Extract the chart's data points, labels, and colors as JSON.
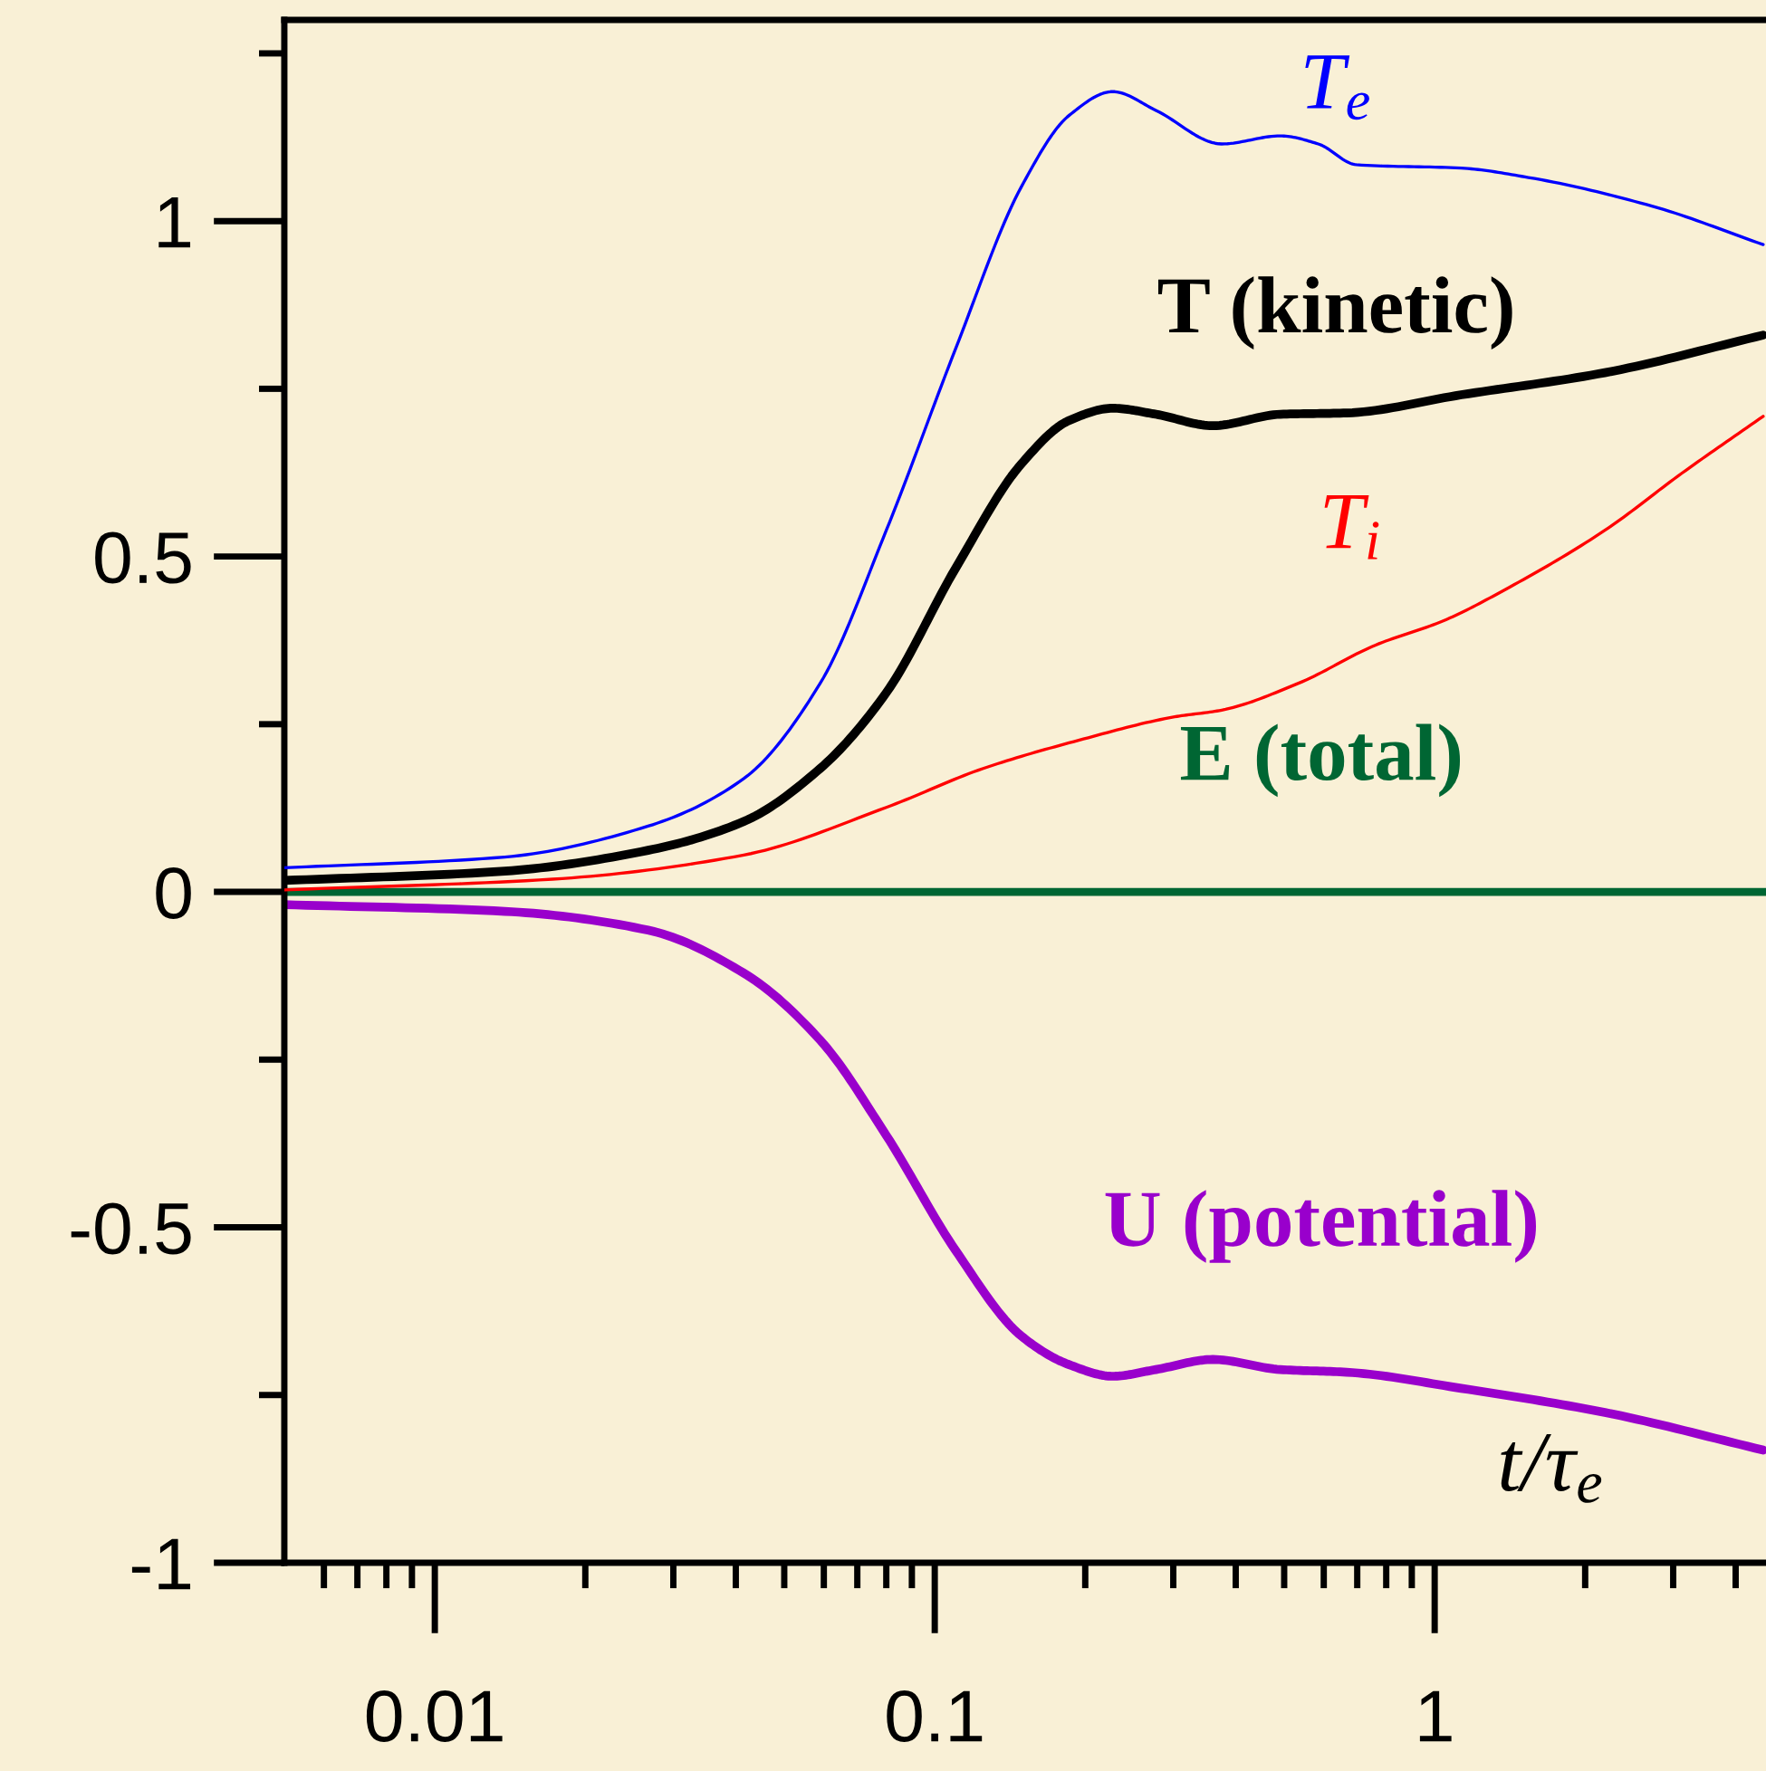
{
  "chart_data": {
    "type": "line",
    "xlabel": "t/τ$_{e}$",
    "log": "x",
    "grid": false,
    "legend": false,
    "marker": "none",
    "line_style": "solid",
    "xlim": [
      0.005,
      4.6
    ],
    "ylim": [
      -1,
      1.3
    ],
    "xticks": [
      {
        "value": 0.006,
        "label": null
      },
      {
        "value": 0.007,
        "label": null
      },
      {
        "value": 0.008,
        "label": null
      },
      {
        "value": 0.009,
        "label": null
      },
      0.01,
      {
        "value": 0.02,
        "label": null
      },
      {
        "value": 0.03,
        "label": null
      },
      {
        "value": 0.04,
        "label": null
      },
      {
        "value": 0.05,
        "label": null
      },
      {
        "value": 0.06,
        "label": null
      },
      {
        "value": 0.07,
        "label": null
      },
      {
        "value": 0.08,
        "label": null
      },
      {
        "value": 0.09,
        "label": null
      },
      0.1,
      {
        "value": 0.2,
        "label": null
      },
      {
        "value": 0.3,
        "label": null
      },
      {
        "value": 0.4,
        "label": null
      },
      {
        "value": 0.5,
        "label": null
      },
      {
        "value": 0.6,
        "label": null
      },
      {
        "value": 0.7,
        "label": null
      },
      {
        "value": 0.8,
        "label": null
      },
      {
        "value": 0.9,
        "label": null
      },
      1,
      {
        "value": 2,
        "label": null
      },
      {
        "value": 3,
        "label": null
      },
      {
        "value": 4,
        "label": null
      }
    ],
    "yticks": [
      -1,
      {
        "value": -0.75,
        "label": null
      },
      -0.5,
      {
        "value": -0.25,
        "label": null
      },
      0,
      {
        "value": 0.25,
        "label": null
      },
      0.5,
      {
        "value": 0.75,
        "label": null
      },
      1,
      {
        "value": 1.25,
        "label": null
      }
    ],
    "series": [
      {
        "name": "T$_{e}$",
        "color": "#0000ff",
        "x": [
          0.005,
          0.0138,
          0.0267,
          0.0415,
          0.059,
          0.08,
          0.11,
          0.149,
          0.186,
          0.227,
          0.277,
          0.375,
          0.491,
          0.585,
          0.697,
          1.13,
          1.54,
          2.73,
          4.54
        ],
        "values": [
          0.036,
          0.052,
          0.098,
          0.169,
          0.311,
          0.539,
          0.809,
          1.051,
          1.158,
          1.193,
          1.165,
          1.115,
          1.127,
          1.115,
          1.084,
          1.079,
          1.065,
          1.022,
          0.965
        ]
      },
      {
        "name": "T (kinetic)",
        "color": "#000000",
        "x": [
          0.005,
          0.0138,
          0.0267,
          0.0415,
          0.059,
          0.08,
          0.11,
          0.149,
          0.186,
          0.227,
          0.277,
          0.36,
          0.491,
          0.667,
          1.13,
          2.19,
          4.54
        ],
        "values": [
          0.017,
          0.031,
          0.062,
          0.105,
          0.184,
          0.297,
          0.482,
          0.638,
          0.703,
          0.721,
          0.712,
          0.695,
          0.712,
          0.714,
          0.741,
          0.774,
          0.83
        ]
      },
      {
        "name": "T$_{i}$",
        "color": "#ff0000",
        "x": [
          0.005,
          0.0172,
          0.0415,
          0.08,
          0.125,
          0.194,
          0.302,
          0.375,
          0.534,
          0.762,
          1.04,
          1.41,
          2.19,
          3.12,
          4.54
        ],
        "values": [
          0.003,
          0.019,
          0.055,
          0.126,
          0.184,
          0.226,
          0.261,
          0.271,
          0.311,
          0.368,
          0.404,
          0.454,
          0.539,
          0.624,
          0.709
        ]
      },
      {
        "name": "E (total)",
        "color": "#006633",
        "x": [
          0.005,
          0.05,
          0.3,
          1,
          4.6
        ],
        "values": [
          0.0,
          0.0,
          0.0,
          0.0,
          0.0
        ]
      },
      {
        "name": "U (potential)",
        "color": "#9900cc",
        "x": [
          0.005,
          0.0138,
          0.0267,
          0.0415,
          0.059,
          0.08,
          0.11,
          0.149,
          0.186,
          0.227,
          0.277,
          0.36,
          0.491,
          0.667,
          1.13,
          2.19,
          4.54
        ],
        "values": [
          -0.019,
          -0.029,
          -0.057,
          -0.121,
          -0.221,
          -0.363,
          -0.534,
          -0.662,
          -0.705,
          -0.722,
          -0.712,
          -0.697,
          -0.712,
          -0.716,
          -0.74,
          -0.776,
          -0.832
        ]
      }
    ]
  }
}
